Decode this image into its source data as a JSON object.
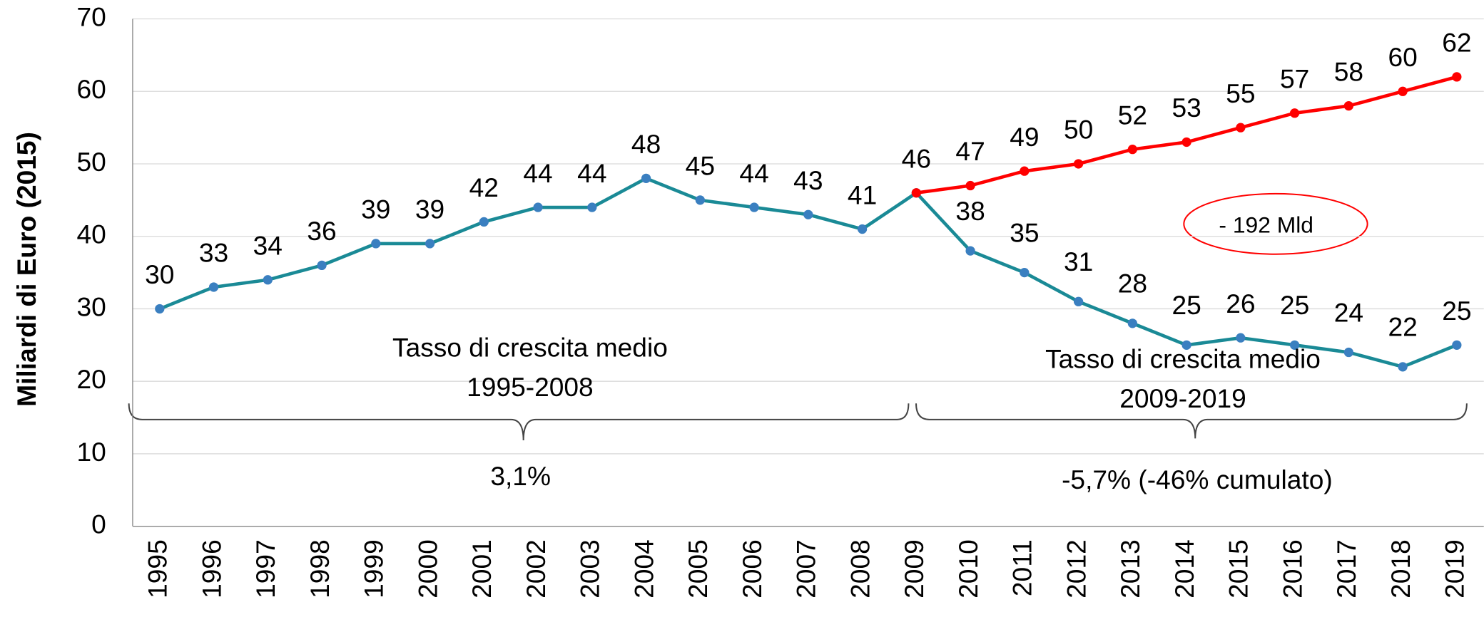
{
  "chart_data": {
    "type": "line",
    "y_label": "Miliardi di Euro (2015)",
    "categories": [
      "1995",
      "1996",
      "1997",
      "1998",
      "1999",
      "2000",
      "2001",
      "2002",
      "2003",
      "2004",
      "2005",
      "2006",
      "2007",
      "2008",
      "2009",
      "2010",
      "2011",
      "2012",
      "2013",
      "2014",
      "2015",
      "2016",
      "2017",
      "2018",
      "2019"
    ],
    "series": [
      {
        "color": "#1a8a96",
        "marker_color": "#3a7fc0",
        "values": [
          30,
          33,
          34,
          36,
          39,
          39,
          42,
          44,
          44,
          48,
          45,
          44,
          43,
          41,
          46,
          38,
          35,
          31,
          28,
          25,
          26,
          25,
          24,
          22,
          25
        ]
      },
      {
        "color": "#ff0000",
        "marker_color": "#ff0000",
        "values": [
          null,
          null,
          null,
          null,
          null,
          null,
          null,
          null,
          null,
          null,
          null,
          null,
          null,
          null,
          46,
          47,
          49,
          50,
          52,
          53,
          55,
          57,
          58,
          60,
          62
        ]
      }
    ],
    "ylim": [
      0,
      70
    ],
    "yticks": [
      0,
      10,
      20,
      30,
      40,
      50,
      60,
      70
    ],
    "grid": true,
    "annotations": [
      "Tasso di crescita medio",
      "1995-2008",
      "3,1%",
      "Tasso di crescita medio",
      "2009-2019",
      "-5,7% (-46% cumulato)",
      "- 192 Mld"
    ]
  }
}
